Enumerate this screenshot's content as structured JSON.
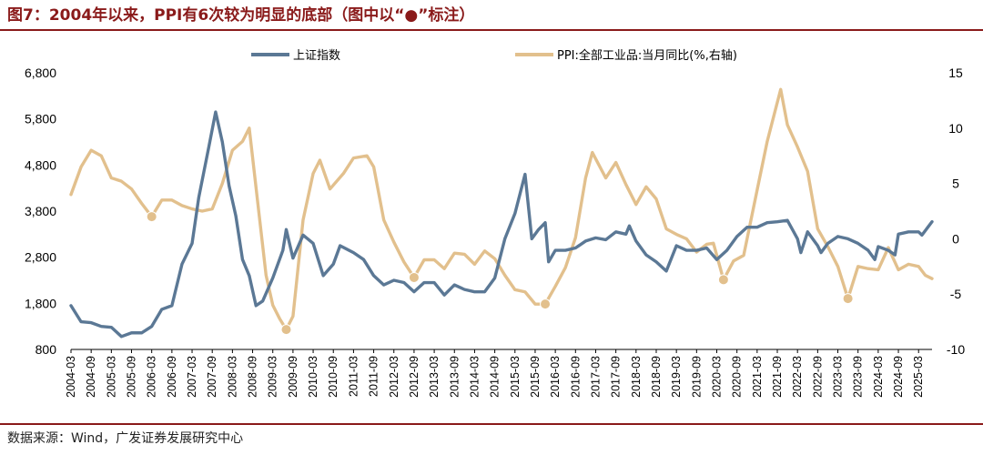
{
  "title": "图7：2004年以来，PPI有6次较为明显的底部（图中以“●”标注）",
  "source": "数据来源：Wind，广发证券发展研究中心",
  "colors": {
    "title": "#8a1a1a",
    "shanghai": "#5b7895",
    "ppi": "#e2c08d",
    "marker": "#e2c08d"
  },
  "chart_data": {
    "type": "line",
    "title": "图7：2004年以来，PPI有6次较为明显的底部（图中以“●”标注）",
    "legend": {
      "placement": "top-center"
    },
    "x_start": "2004-03",
    "x_end": "2025-07",
    "x_tick_labels": [
      "2004-03",
      "2004-09",
      "2005-03",
      "2005-09",
      "2006-03",
      "2006-09",
      "2007-03",
      "2007-09",
      "2008-03",
      "2008-09",
      "2009-03",
      "2009-09",
      "2010-03",
      "2010-09",
      "2011-03",
      "2011-09",
      "2012-03",
      "2012-09",
      "2013-03",
      "2013-09",
      "2014-03",
      "2014-09",
      "2015-03",
      "2015-09",
      "2016-03",
      "2016-09",
      "2017-03",
      "2017-09",
      "2018-03",
      "2018-09",
      "2019-03",
      "2019-09",
      "2020-03",
      "2020-09",
      "2021-03",
      "2021-09",
      "2022-03",
      "2022-09",
      "2023-03",
      "2023-09",
      "2024-03",
      "2024-09",
      "2025-03"
    ],
    "y_left": {
      "min": 800,
      "max": 6800,
      "ticks": [
        800,
        1800,
        2800,
        3800,
        4800,
        5800,
        6800
      ],
      "tick_labels": [
        "800",
        "1,800",
        "2,800",
        "3,800",
        "4,800",
        "5,800",
        "6,800"
      ]
    },
    "y_right": {
      "min": -10,
      "max": 15,
      "ticks": [
        -10,
        -5,
        0,
        5,
        10,
        15
      ],
      "tick_labels": [
        "-10",
        "-5",
        "0",
        "5",
        "10",
        "15"
      ]
    },
    "series": [
      {
        "name": "上证指数",
        "axis": "left",
        "points": [
          [
            "2004-03",
            1750
          ],
          [
            "2004-06",
            1400
          ],
          [
            "2004-09",
            1380
          ],
          [
            "2004-12",
            1300
          ],
          [
            "2005-03",
            1280
          ],
          [
            "2005-06",
            1080
          ],
          [
            "2005-09",
            1160
          ],
          [
            "2005-12",
            1160
          ],
          [
            "2006-03",
            1300
          ],
          [
            "2006-06",
            1670
          ],
          [
            "2006-09",
            1750
          ],
          [
            "2006-12",
            2650
          ],
          [
            "2007-03",
            3100
          ],
          [
            "2007-05",
            4100
          ],
          [
            "2007-08",
            5200
          ],
          [
            "2007-10",
            5950
          ],
          [
            "2007-12",
            5300
          ],
          [
            "2008-02",
            4350
          ],
          [
            "2008-04",
            3700
          ],
          [
            "2008-06",
            2750
          ],
          [
            "2008-08",
            2400
          ],
          [
            "2008-10",
            1750
          ],
          [
            "2008-12",
            1850
          ],
          [
            "2009-03",
            2350
          ],
          [
            "2009-06",
            2950
          ],
          [
            "2009-07",
            3400
          ],
          [
            "2009-09",
            2780
          ],
          [
            "2009-12",
            3280
          ],
          [
            "2010-03",
            3100
          ],
          [
            "2010-06",
            2400
          ],
          [
            "2010-09",
            2650
          ],
          [
            "2010-11",
            3050
          ],
          [
            "2011-03",
            2900
          ],
          [
            "2011-06",
            2750
          ],
          [
            "2011-09",
            2400
          ],
          [
            "2011-12",
            2200
          ],
          [
            "2012-03",
            2300
          ],
          [
            "2012-06",
            2250
          ],
          [
            "2012-09",
            2050
          ],
          [
            "2012-12",
            2250
          ],
          [
            "2013-03",
            2250
          ],
          [
            "2013-06",
            1980
          ],
          [
            "2013-09",
            2200
          ],
          [
            "2013-12",
            2100
          ],
          [
            "2014-03",
            2050
          ],
          [
            "2014-06",
            2050
          ],
          [
            "2014-09",
            2350
          ],
          [
            "2014-12",
            3200
          ],
          [
            "2015-03",
            3750
          ],
          [
            "2015-06",
            4600
          ],
          [
            "2015-08",
            3200
          ],
          [
            "2015-10",
            3400
          ],
          [
            "2015-12",
            3550
          ],
          [
            "2016-01",
            2700
          ],
          [
            "2016-03",
            2950
          ],
          [
            "2016-06",
            2950
          ],
          [
            "2016-09",
            3000
          ],
          [
            "2016-12",
            3150
          ],
          [
            "2017-03",
            3220
          ],
          [
            "2017-06",
            3180
          ],
          [
            "2017-09",
            3350
          ],
          [
            "2017-12",
            3300
          ],
          [
            "2018-01",
            3480
          ],
          [
            "2018-03",
            3150
          ],
          [
            "2018-06",
            2850
          ],
          [
            "2018-09",
            2700
          ],
          [
            "2018-12",
            2500
          ],
          [
            "2019-03",
            3050
          ],
          [
            "2019-06",
            2950
          ],
          [
            "2019-09",
            2950
          ],
          [
            "2019-12",
            3000
          ],
          [
            "2020-03",
            2750
          ],
          [
            "2020-06",
            2950
          ],
          [
            "2020-09",
            3250
          ],
          [
            "2020-12",
            3450
          ],
          [
            "2021-03",
            3450
          ],
          [
            "2021-06",
            3550
          ],
          [
            "2021-09",
            3570
          ],
          [
            "2021-12",
            3600
          ],
          [
            "2022-03",
            3200
          ],
          [
            "2022-04",
            2900
          ],
          [
            "2022-06",
            3350
          ],
          [
            "2022-09",
            3050
          ],
          [
            "2022-10",
            2900
          ],
          [
            "2022-12",
            3100
          ],
          [
            "2023-03",
            3250
          ],
          [
            "2023-06",
            3200
          ],
          [
            "2023-09",
            3100
          ],
          [
            "2023-12",
            2950
          ],
          [
            "2024-02",
            2750
          ],
          [
            "2024-03",
            3030
          ],
          [
            "2024-06",
            2950
          ],
          [
            "2024-08",
            2850
          ],
          [
            "2024-09",
            3300
          ],
          [
            "2024-12",
            3350
          ],
          [
            "2025-03",
            3350
          ],
          [
            "2025-04",
            3280
          ],
          [
            "2025-07",
            3570
          ]
        ]
      },
      {
        "name": "PPI:全部工业品:当月同比(%,右轴)",
        "axis": "right",
        "points": [
          [
            "2004-03",
            4.0
          ],
          [
            "2004-06",
            6.5
          ],
          [
            "2004-09",
            8.0
          ],
          [
            "2004-12",
            7.5
          ],
          [
            "2005-03",
            5.5
          ],
          [
            "2005-06",
            5.2
          ],
          [
            "2005-09",
            4.5
          ],
          [
            "2005-12",
            3.2
          ],
          [
            "2006-03",
            2.0
          ],
          [
            "2006-06",
            3.5
          ],
          [
            "2006-09",
            3.5
          ],
          [
            "2006-12",
            3.0
          ],
          [
            "2007-03",
            2.7
          ],
          [
            "2007-06",
            2.5
          ],
          [
            "2007-09",
            2.7
          ],
          [
            "2007-12",
            5.0
          ],
          [
            "2008-03",
            8.0
          ],
          [
            "2008-06",
            8.8
          ],
          [
            "2008-08",
            10.0
          ],
          [
            "2008-11",
            2.0
          ],
          [
            "2009-01",
            -3.3
          ],
          [
            "2009-03",
            -6.0
          ],
          [
            "2009-05",
            -7.2
          ],
          [
            "2009-07",
            -8.2
          ],
          [
            "2009-09",
            -7.0
          ],
          [
            "2009-12",
            1.7
          ],
          [
            "2010-03",
            5.9
          ],
          [
            "2010-05",
            7.1
          ],
          [
            "2010-08",
            4.5
          ],
          [
            "2010-12",
            5.9
          ],
          [
            "2011-03",
            7.3
          ],
          [
            "2011-07",
            7.5
          ],
          [
            "2011-09",
            6.5
          ],
          [
            "2011-12",
            1.7
          ],
          [
            "2012-03",
            -0.3
          ],
          [
            "2012-06",
            -2.1
          ],
          [
            "2012-09",
            -3.5
          ],
          [
            "2012-12",
            -1.9
          ],
          [
            "2013-03",
            -1.9
          ],
          [
            "2013-06",
            -2.7
          ],
          [
            "2013-09",
            -1.3
          ],
          [
            "2013-12",
            -1.4
          ],
          [
            "2014-03",
            -2.3
          ],
          [
            "2014-06",
            -1.1
          ],
          [
            "2014-09",
            -1.8
          ],
          [
            "2014-12",
            -3.3
          ],
          [
            "2015-03",
            -4.6
          ],
          [
            "2015-06",
            -4.8
          ],
          [
            "2015-09",
            -5.9
          ],
          [
            "2015-12",
            -5.9
          ],
          [
            "2016-03",
            -4.3
          ],
          [
            "2016-06",
            -2.6
          ],
          [
            "2016-09",
            0.1
          ],
          [
            "2016-12",
            5.5
          ],
          [
            "2017-02",
            7.8
          ],
          [
            "2017-06",
            5.5
          ],
          [
            "2017-09",
            6.9
          ],
          [
            "2017-12",
            4.9
          ],
          [
            "2018-03",
            3.1
          ],
          [
            "2018-06",
            4.7
          ],
          [
            "2018-09",
            3.6
          ],
          [
            "2018-12",
            0.9
          ],
          [
            "2019-03",
            0.4
          ],
          [
            "2019-06",
            0.0
          ],
          [
            "2019-09",
            -1.2
          ],
          [
            "2019-12",
            -0.5
          ],
          [
            "2020-02",
            -0.4
          ],
          [
            "2020-05",
            -3.7
          ],
          [
            "2020-08",
            -2.0
          ],
          [
            "2020-11",
            -1.5
          ],
          [
            "2021-03",
            4.4
          ],
          [
            "2021-06",
            8.8
          ],
          [
            "2021-10",
            13.5
          ],
          [
            "2021-12",
            10.3
          ],
          [
            "2022-03",
            8.3
          ],
          [
            "2022-06",
            6.1
          ],
          [
            "2022-09",
            0.9
          ],
          [
            "2022-12",
            -0.7
          ],
          [
            "2023-03",
            -2.5
          ],
          [
            "2023-06",
            -5.4
          ],
          [
            "2023-09",
            -2.5
          ],
          [
            "2023-12",
            -2.7
          ],
          [
            "2024-03",
            -2.8
          ],
          [
            "2024-06",
            -0.8
          ],
          [
            "2024-09",
            -2.8
          ],
          [
            "2024-12",
            -2.3
          ],
          [
            "2025-03",
            -2.5
          ],
          [
            "2025-05",
            -3.3
          ],
          [
            "2025-07",
            -3.6
          ]
        ]
      }
    ],
    "markers": {
      "series": "PPI:全部工业品:当月同比(%,右轴)",
      "symbol": "●",
      "points": [
        [
          "2006-03",
          2.0
        ],
        [
          "2009-07",
          -8.2
        ],
        [
          "2012-09",
          -3.5
        ],
        [
          "2015-12",
          -5.9
        ],
        [
          "2020-05",
          -3.7
        ],
        [
          "2023-06",
          -5.4
        ]
      ]
    }
  }
}
